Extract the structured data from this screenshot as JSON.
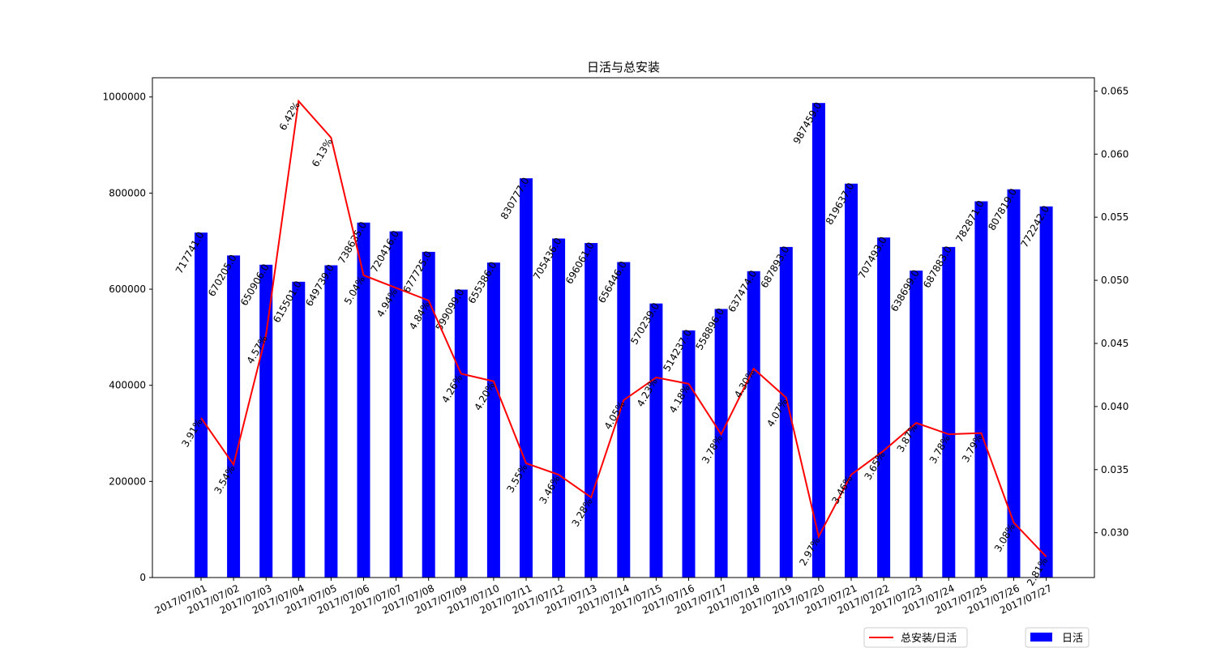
{
  "chart_data": {
    "type": "bar+line",
    "title": "日活与总安装",
    "categories": [
      "2017/07/01",
      "2017/07/02",
      "2017/07/03",
      "2017/07/04",
      "2017/07/05",
      "2017/07/06",
      "2017/07/07",
      "2017/07/08",
      "2017/07/09",
      "2017/07/10",
      "2017/07/11",
      "2017/07/12",
      "2017/07/13",
      "2017/07/14",
      "2017/07/15",
      "2017/07/16",
      "2017/07/17",
      "2017/07/18",
      "2017/07/19",
      "2017/07/20",
      "2017/07/21",
      "2017/07/22",
      "2017/07/23",
      "2017/07/24",
      "2017/07/25",
      "2017/07/26",
      "2017/07/27"
    ],
    "bar_series": {
      "name": "日活",
      "color": "#0000ff",
      "values": [
        717741,
        670205,
        650906,
        615501,
        649739,
        738635,
        720416,
        677725,
        599099,
        655386,
        830777,
        705436,
        696061,
        656446,
        570239,
        514237,
        558896,
        637474,
        687893,
        987459,
        819637,
        707493,
        638699,
        687883,
        782871,
        807819,
        772242
      ],
      "labels": [
        "717741.0",
        "670205.0",
        "650906.0",
        "615501.0",
        "649739.0",
        "738635.0",
        "720416.0",
        "677725.0",
        "599099.0",
        "655386.0",
        "830777.0",
        "705436.0",
        "696061.0",
        "656446.0",
        "570239.0",
        "514237.0",
        "558896.0",
        "637474.0",
        "687893.0",
        "987459.0",
        "819637.0",
        "707493.0",
        "638699.0",
        "687883.0",
        "782871.0",
        "807819.0",
        "772242.0"
      ]
    },
    "line_series": {
      "name": "总安装/日活",
      "color": "#ff0000",
      "values": [
        0.0391,
        0.0354,
        0.0457,
        0.0642,
        0.0613,
        0.0504,
        0.0494,
        0.0484,
        0.0426,
        0.042,
        0.0355,
        0.0346,
        0.0328,
        0.0405,
        0.0423,
        0.0418,
        0.0378,
        0.043,
        0.0407,
        0.0297,
        0.0346,
        0.0365,
        0.0387,
        0.0378,
        0.0379,
        0.0308,
        0.0281
      ],
      "labels": [
        "3.91%",
        "3.54%",
        "4.57%",
        "6.42%",
        "6.13%",
        "5.04%",
        "4.94%",
        "4.84%",
        "4.26%",
        "4.20%",
        "3.55%",
        "3.46%",
        "3.28%",
        "4.05%",
        "4.23%",
        "4.18%",
        "3.78%",
        "4.30%",
        "4.07%",
        "2.97%",
        "3.46%",
        "3.65%",
        "3.87%",
        "3.78%",
        "3.79%",
        "3.08%",
        "2.81%"
      ]
    },
    "y_left": {
      "lim": [
        0,
        1040000
      ],
      "ticks": [
        0,
        200000,
        400000,
        600000,
        800000,
        1000000
      ],
      "tick_labels": [
        "0",
        "200000",
        "400000",
        "600000",
        "800000",
        "1000000"
      ]
    },
    "y_right": {
      "lim": [
        0.02645,
        0.06605
      ],
      "ticks": [
        0.03,
        0.035,
        0.04,
        0.045,
        0.05,
        0.055,
        0.06,
        0.065
      ],
      "tick_labels": [
        "0.030",
        "0.035",
        "0.040",
        "0.045",
        "0.050",
        "0.055",
        "0.060",
        "0.065"
      ]
    },
    "grid": false,
    "legends": [
      "bottom-right"
    ]
  }
}
